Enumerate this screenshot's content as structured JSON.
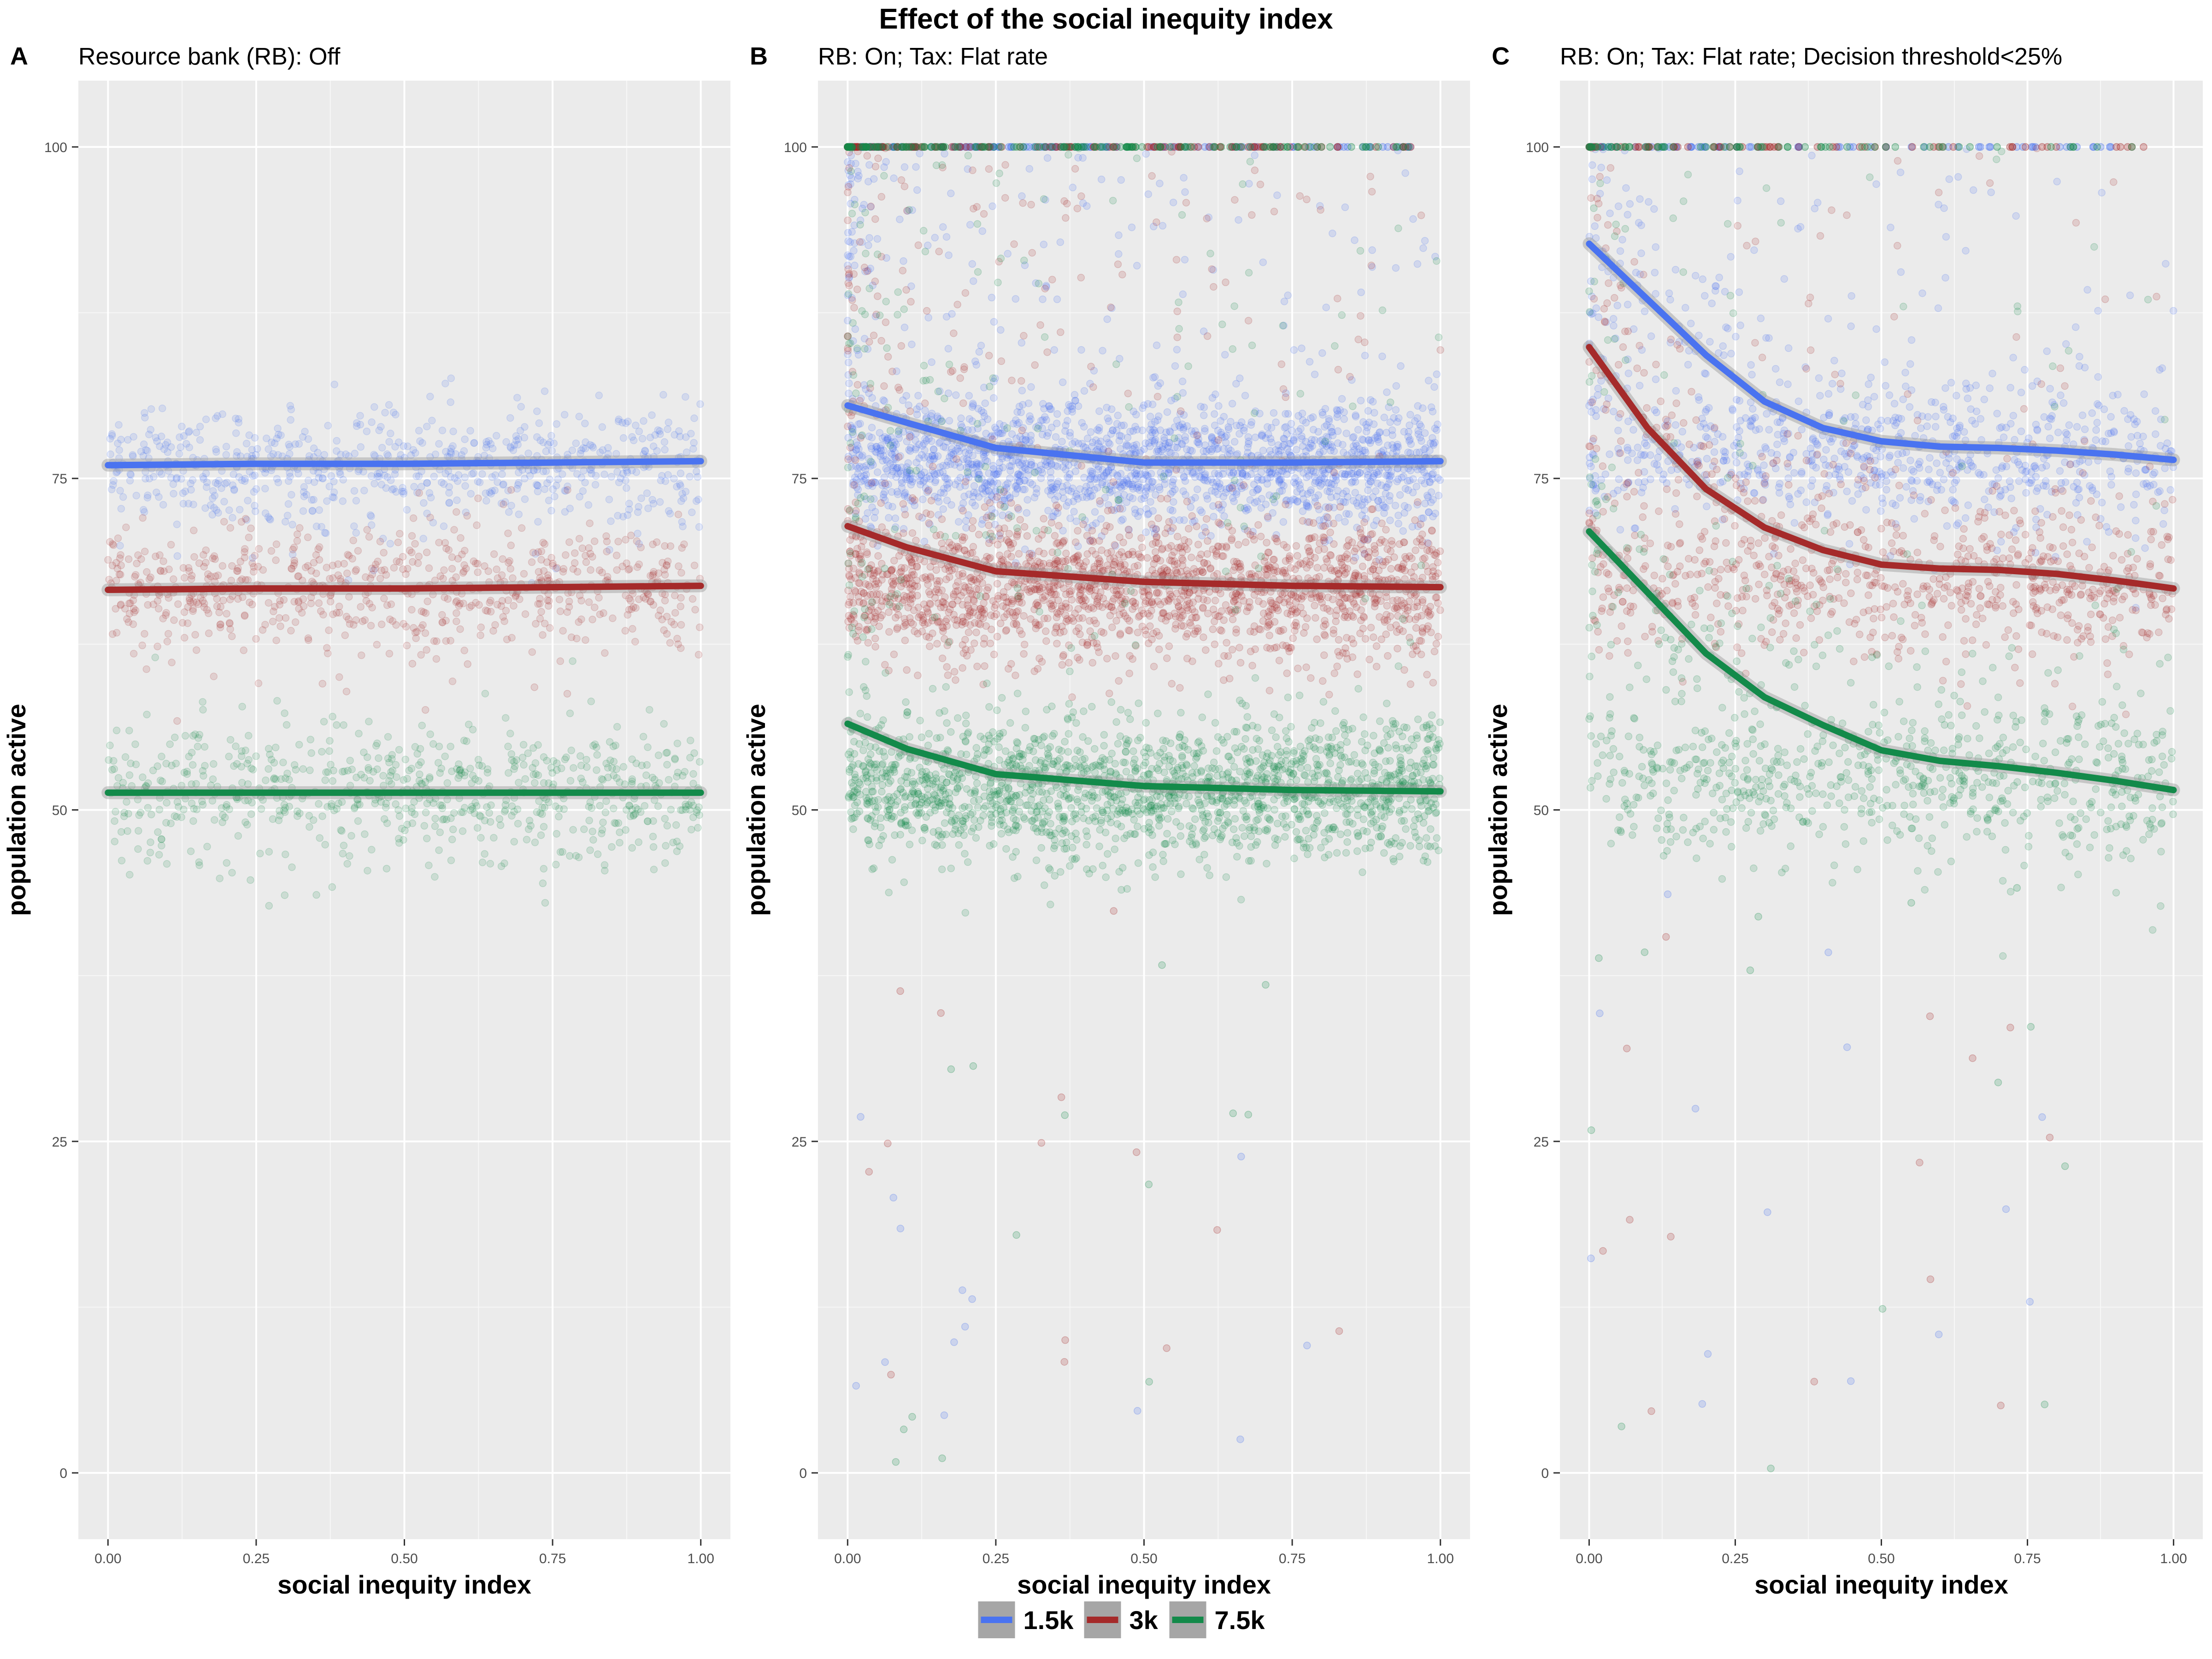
{
  "figure": {
    "title": "Effect of the social inequity index"
  },
  "legend": {
    "position": "bottom",
    "items": [
      {
        "label": "1.5k",
        "color": "#4a73f0"
      },
      {
        "label": "3k",
        "color": "#a52a2a"
      },
      {
        "label": "7.5k",
        "color": "#138a4a"
      }
    ]
  },
  "chart_data": [
    {
      "panel_label": "A",
      "title": "Resource bank (RB): Off",
      "type": "scatter",
      "xlabel": "social inequity index",
      "ylabel": "population active",
      "xlim": [
        -0.05,
        1.05
      ],
      "ylim": [
        -5,
        105
      ],
      "xticks": [
        "0.00",
        "0.25",
        "0.50",
        "0.75",
        "1.00"
      ],
      "yticks": [
        "0",
        "25",
        "50",
        "75",
        "100"
      ],
      "grid": true,
      "series": [
        {
          "name": "1.5k",
          "color": "#4a73f0",
          "center": 76,
          "spread": 2.2,
          "n": 700,
          "smooth": {
            "x": [
              0,
              0.25,
              0.5,
              0.75,
              1.0
            ],
            "y": [
              76,
              76.1,
              76.1,
              76.2,
              76.3
            ]
          }
        },
        {
          "name": "3k",
          "color": "#a52a2a",
          "center": 66.7,
          "spread": 2.4,
          "n": 700,
          "smooth": {
            "x": [
              0,
              0.25,
              0.5,
              0.75,
              1.0
            ],
            "y": [
              66.6,
              66.7,
              66.7,
              66.8,
              66.9
            ]
          }
        },
        {
          "name": "7.5k",
          "color": "#138a4a",
          "center": 51.3,
          "spread": 2.6,
          "n": 700,
          "smooth": {
            "x": [
              0,
              0.25,
              0.5,
              0.75,
              1.0
            ],
            "y": [
              51.3,
              51.3,
              51.3,
              51.3,
              51.3
            ]
          }
        }
      ]
    },
    {
      "panel_label": "B",
      "title": "RB: On; Tax: Flat rate",
      "type": "scatter",
      "xlabel": "social inequity index",
      "ylabel": "population active",
      "xlim": [
        -0.05,
        1.05
      ],
      "ylim": [
        -5,
        105
      ],
      "xticks": [
        "0.00",
        "0.25",
        "0.50",
        "0.75",
        "1.00"
      ],
      "yticks": [
        "0",
        "25",
        "50",
        "75",
        "100"
      ],
      "grid": true,
      "series": [
        {
          "name": "1.5k",
          "color": "#4a73f0",
          "center": 76,
          "spread": 2.3,
          "n": 1800,
          "smooth": {
            "x": [
              0,
              0.1,
              0.25,
              0.5,
              0.75,
              1.0
            ],
            "y": [
              80.5,
              79.2,
              77.3,
              76.2,
              76.2,
              76.3
            ]
          }
        },
        {
          "name": "3k",
          "color": "#a52a2a",
          "center": 66.7,
          "spread": 2.6,
          "n": 1800,
          "smooth": {
            "x": [
              0,
              0.1,
              0.25,
              0.5,
              0.75,
              1.0
            ],
            "y": [
              71.4,
              69.8,
              68.0,
              67.2,
              66.9,
              66.8
            ]
          }
        },
        {
          "name": "7.5k",
          "color": "#138a4a",
          "center": 51.5,
          "spread": 2.7,
          "n": 1800,
          "smooth": {
            "x": [
              0,
              0.1,
              0.25,
              0.5,
              0.75,
              1.0
            ],
            "y": [
              56.5,
              54.6,
              52.7,
              51.8,
              51.5,
              51.4
            ]
          }
        }
      ],
      "ceiling_y": 100,
      "outlier_y_range": [
        0,
        45
      ]
    },
    {
      "panel_label": "C",
      "title": "RB: On; Tax: Flat rate; Decision threshold<25%",
      "type": "scatter",
      "xlabel": "social inequity index",
      "ylabel": "population active",
      "xlim": [
        -0.05,
        1.05
      ],
      "ylim": [
        -5,
        105
      ],
      "xticks": [
        "0.00",
        "0.25",
        "0.50",
        "0.75",
        "1.00"
      ],
      "yticks": [
        "0",
        "25",
        "50",
        "75",
        "100"
      ],
      "grid": true,
      "series": [
        {
          "name": "1.5k",
          "color": "#4a73f0",
          "center": 76.5,
          "spread": 2.3,
          "n": 800,
          "smooth": {
            "x": [
              0,
              0.1,
              0.2,
              0.3,
              0.4,
              0.5,
              0.6,
              0.7,
              0.8,
              0.9,
              1.0
            ],
            "y": [
              92.7,
              88.5,
              84.3,
              80.8,
              78.8,
              77.8,
              77.4,
              77.3,
              77.1,
              76.8,
              76.4
            ]
          }
        },
        {
          "name": "3k",
          "color": "#a52a2a",
          "center": 67,
          "spread": 2.5,
          "n": 800,
          "smooth": {
            "x": [
              0,
              0.1,
              0.2,
              0.3,
              0.4,
              0.5,
              0.6,
              0.7,
              0.8,
              0.9,
              1.0
            ],
            "y": [
              84.9,
              78.8,
              74.2,
              71.3,
              69.6,
              68.5,
              68.2,
              68.1,
              67.8,
              67.3,
              66.7
            ]
          }
        },
        {
          "name": "7.5k",
          "color": "#138a4a",
          "center": 52,
          "spread": 2.7,
          "n": 800,
          "smooth": {
            "x": [
              0,
              0.1,
              0.2,
              0.3,
              0.4,
              0.5,
              0.6,
              0.7,
              0.8,
              0.9,
              1.0
            ],
            "y": [
              71.0,
              66.4,
              61.8,
              58.5,
              56.4,
              54.5,
              53.7,
              53.3,
              52.8,
              52.2,
              51.5
            ]
          }
        }
      ],
      "ceiling_y": 100,
      "outlier_y_range": [
        0,
        45
      ]
    }
  ]
}
